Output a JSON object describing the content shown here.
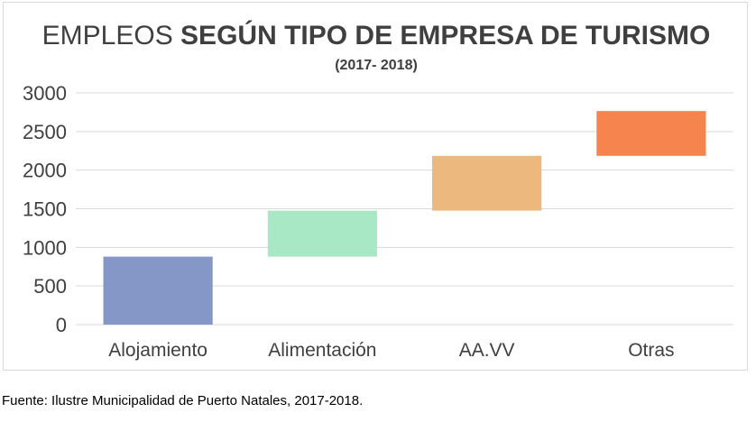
{
  "chart_data": {
    "type": "bar",
    "style": "waterfall",
    "title_light": "EMPLEOS ",
    "title_bold": "SEGÚN TIPO DE EMPRESA DE TURISMO",
    "subtitle": "(2017- 2018)",
    "categories": [
      "Alojamiento",
      "Alimentación",
      "AA.VV",
      "Otras"
    ],
    "base": [
      0,
      880,
      1475,
      2185
    ],
    "values": [
      880,
      595,
      710,
      580
    ],
    "colors": [
      "#8497c7",
      "#a8e8c4",
      "#ecb87e",
      "#f5844f"
    ],
    "xlabel": "",
    "ylabel": "",
    "ylim": [
      0,
      3000
    ],
    "yticks": [
      0,
      500,
      1000,
      1500,
      2000,
      2500,
      3000
    ],
    "grid": true,
    "legend": "none"
  },
  "source": "Fuente: Ilustre Municipalidad de Puerto Natales, 2017-2018."
}
